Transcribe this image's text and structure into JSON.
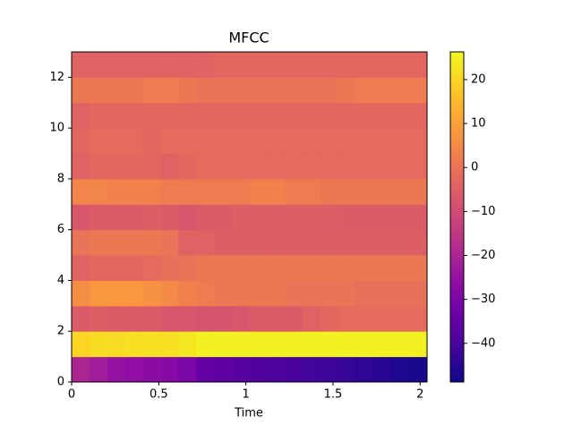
{
  "chart_data": {
    "type": "heatmap",
    "title": "MFCC",
    "xlabel": "Time",
    "colormap": "plasma",
    "xbins": [
      0,
      0.102,
      0.204,
      0.306,
      0.408,
      0.51,
      0.612,
      0.714,
      0.816,
      0.918,
      1.02,
      1.122,
      1.224,
      1.326,
      1.428,
      1.53,
      1.632,
      1.734,
      1.836,
      1.938,
      2.04
    ],
    "ybins": [
      0,
      1,
      2,
      3,
      4,
      5,
      6,
      7,
      8,
      9,
      10,
      11,
      12,
      13
    ],
    "z": [
      [
        -20,
        -22,
        -25,
        -26,
        -27,
        -28,
        -30,
        -35,
        -36,
        -37,
        -38,
        -39,
        -40,
        -41,
        -42,
        -43,
        -44,
        -45,
        -46,
        -47
      ],
      [
        20,
        21,
        21,
        22,
        22,
        22,
        23,
        25,
        25,
        25,
        25,
        25,
        25,
        25,
        25,
        25,
        25,
        25,
        25,
        25
      ],
      [
        -6,
        -5,
        -6,
        -6,
        -6,
        -7,
        -7,
        -8,
        -8,
        -7,
        -6,
        -6,
        -6,
        -4,
        -3,
        -2,
        -2,
        -2,
        -2,
        -2
      ],
      [
        6,
        8,
        8,
        8,
        7,
        5,
        3,
        2,
        1,
        1,
        1,
        1,
        0,
        0,
        0,
        0,
        -1,
        -1,
        -1,
        -1
      ],
      [
        -4,
        -3,
        -3,
        -3,
        -2,
        -1,
        0,
        1,
        1,
        1,
        1,
        1,
        1,
        1,
        1,
        1,
        1,
        1,
        1,
        1
      ],
      [
        0,
        1,
        1,
        1,
        1,
        0,
        -4,
        -4,
        -5,
        -5,
        -5,
        -5,
        -5,
        -5,
        -5,
        -5,
        -5,
        -5,
        -5,
        -5
      ],
      [
        -7,
        -6,
        -6,
        -6,
        -5,
        -6,
        -7,
        -6,
        -6,
        -5,
        -5,
        -5,
        -5,
        -5,
        -5,
        -6,
        -6,
        -6,
        -6,
        -6
      ],
      [
        4,
        4,
        3,
        3,
        3,
        2,
        2,
        2,
        2,
        2,
        3,
        3,
        2,
        2,
        1,
        1,
        1,
        1,
        1,
        1
      ],
      [
        -4,
        -3,
        -3,
        -3,
        -3,
        -4,
        -3,
        -2,
        -2,
        -2,
        -2,
        -2,
        -2,
        -2,
        -2,
        -2,
        -2,
        -2,
        -2,
        -2
      ],
      [
        -3,
        -2,
        -2,
        -2,
        -3,
        -2,
        -2,
        -2,
        -2,
        -2,
        -2,
        -2,
        -2,
        -2,
        -2,
        -2,
        -2,
        -2,
        -2,
        -2
      ],
      [
        -4,
        -3,
        -3,
        -3,
        -3,
        -3,
        -3,
        -3,
        -3,
        -3,
        -3,
        -3,
        -3,
        -3,
        -3,
        -3,
        -3,
        -3,
        -3,
        -3
      ],
      [
        1,
        1,
        1,
        1,
        2,
        2,
        1,
        0,
        0,
        0,
        0,
        0,
        0,
        0,
        0,
        1,
        2,
        2,
        2,
        2
      ],
      [
        -4,
        -4,
        -4,
        -4,
        -4,
        -4,
        -4,
        -4,
        -3,
        -3,
        -3,
        -3,
        -3,
        -3,
        -3,
        -3,
        -3,
        -3,
        -3,
        -3
      ]
    ],
    "xlim": [
      0,
      2.04
    ],
    "xticks": [
      0,
      0.5,
      1,
      1.5,
      2
    ],
    "ylim": [
      0,
      13
    ],
    "yticks": [
      0,
      2,
      4,
      6,
      8,
      10,
      12
    ],
    "clim": [
      -48.8,
      26.3
    ],
    "cticks": [
      {
        "value": -40,
        "label": "−40"
      },
      {
        "value": -30,
        "label": "−30"
      },
      {
        "value": -20,
        "label": "−20"
      },
      {
        "value": -10,
        "label": "−10"
      },
      0,
      10,
      20
    ]
  }
}
